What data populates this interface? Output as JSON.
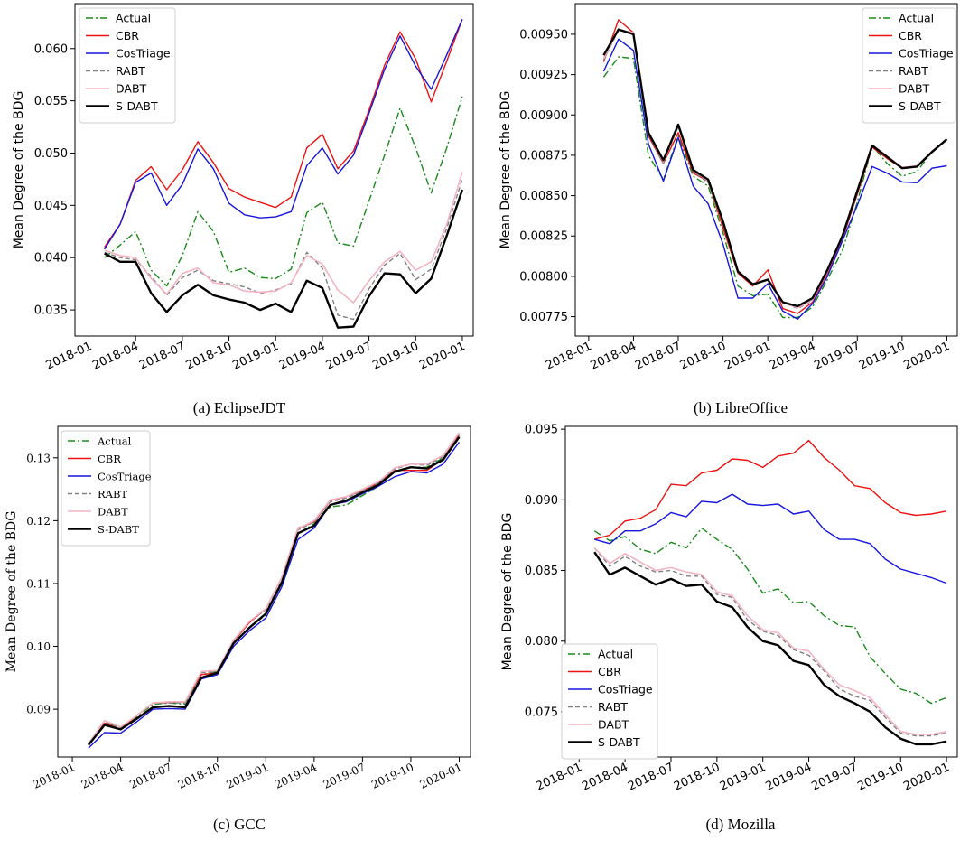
{
  "series_styles": {
    "Actual": {
      "color": "#1a8a1a",
      "dash": "8,3,2,3",
      "width": 1.4
    },
    "CBR": {
      "color": "#ee1111",
      "dash": "",
      "width": 1.4
    },
    "CosTriage": {
      "color": "#1515dd",
      "dash": "",
      "width": 1.4
    },
    "RABT": {
      "color": "#808080",
      "dash": "5,3",
      "width": 1.4
    },
    "DABT": {
      "color": "#f4b3c2",
      "dash": "",
      "width": 1.6
    },
    "S-DABT": {
      "color": "#000000",
      "dash": "",
      "width": 2.4
    }
  },
  "x_months": [
    "2018-02",
    "2018-03",
    "2018-04",
    "2018-05",
    "2018-06",
    "2018-07",
    "2018-08",
    "2018-09",
    "2018-10",
    "2018-11",
    "2018-12",
    "2019-01",
    "2019-02",
    "2019-03",
    "2019-04",
    "2019-05",
    "2019-06",
    "2019-07",
    "2019-08",
    "2019-09",
    "2019-10",
    "2019-11",
    "2019-12",
    "2020-01"
  ],
  "chart_data": [
    {
      "type": "line",
      "caption": "(a) EclipseJDT",
      "ylabel": "Mean Degree of the BDG",
      "ylim": [
        0.0325,
        0.0643
      ],
      "yticks": [
        "0.035",
        "0.040",
        "0.045",
        "0.050",
        "0.055",
        "0.060"
      ],
      "ytick_values": [
        0.035,
        0.04,
        0.045,
        0.05,
        0.055,
        0.06
      ],
      "xticks": [
        "2018-01",
        "2018-04",
        "2018-07",
        "2018-10",
        "2019-01",
        "2019-04",
        "2019-07",
        "2019-10",
        "2020-01"
      ],
      "legend": "top-left",
      "series": [
        {
          "name": "Actual",
          "values": [
            0.04,
            0.0412,
            0.0425,
            0.0388,
            0.0373,
            0.0402,
            0.0444,
            0.0425,
            0.0386,
            0.039,
            0.0381,
            0.038,
            0.0389,
            0.0443,
            0.0453,
            0.0414,
            0.0411,
            0.0454,
            0.0498,
            0.0543,
            0.0505,
            0.0462,
            0.0505,
            0.0554
          ]
        },
        {
          "name": "CBR",
          "values": [
            0.041,
            0.0432,
            0.0474,
            0.0487,
            0.0465,
            0.0484,
            0.0511,
            0.0491,
            0.0466,
            0.0458,
            0.0453,
            0.0448,
            0.0458,
            0.0505,
            0.0518,
            0.0485,
            0.0502,
            0.0541,
            0.0584,
            0.0616,
            0.059,
            0.0549,
            0.0588,
            0.0628
          ]
        },
        {
          "name": "CosTriage",
          "values": [
            0.0408,
            0.0432,
            0.0472,
            0.0481,
            0.045,
            0.047,
            0.0504,
            0.0485,
            0.0452,
            0.0441,
            0.0438,
            0.0439,
            0.0444,
            0.0488,
            0.0505,
            0.048,
            0.0498,
            0.0538,
            0.058,
            0.0612,
            0.0583,
            0.0561,
            0.0594,
            0.0628
          ]
        },
        {
          "name": "RABT",
          "values": [
            0.0405,
            0.04,
            0.0398,
            0.0382,
            0.0364,
            0.0381,
            0.0388,
            0.0378,
            0.0375,
            0.0372,
            0.0366,
            0.0369,
            0.0375,
            0.0405,
            0.039,
            0.0345,
            0.0341,
            0.037,
            0.0393,
            0.0404,
            0.0379,
            0.0389,
            0.0428,
            0.0475
          ]
        },
        {
          "name": "DABT",
          "values": [
            0.0407,
            0.0402,
            0.04,
            0.038,
            0.0365,
            0.0385,
            0.039,
            0.0376,
            0.0374,
            0.0368,
            0.0367,
            0.0368,
            0.0376,
            0.0402,
            0.0394,
            0.0369,
            0.0357,
            0.0378,
            0.0396,
            0.0406,
            0.0388,
            0.0396,
            0.0432,
            0.0482
          ]
        },
        {
          "name": "S-DABT",
          "values": [
            0.0404,
            0.0396,
            0.0396,
            0.0366,
            0.0348,
            0.0364,
            0.0374,
            0.0364,
            0.036,
            0.0357,
            0.035,
            0.0356,
            0.0348,
            0.0378,
            0.0371,
            0.0333,
            0.0334,
            0.0363,
            0.0385,
            0.0384,
            0.0366,
            0.038,
            0.0421,
            0.0465
          ]
        }
      ]
    },
    {
      "type": "line",
      "caption": "(b) LibreOffice",
      "ylabel": "Mean Degree of the BDG",
      "ylim": [
        0.00763,
        0.00969
      ],
      "yticks": [
        "0.00775",
        "0.00800",
        "0.00825",
        "0.00850",
        "0.00875",
        "0.00900",
        "0.00925",
        "0.00950"
      ],
      "ytick_values": [
        0.00775,
        0.008,
        0.00825,
        0.0085,
        0.00875,
        0.009,
        0.00925,
        0.0095
      ],
      "xticks": [
        "2018-01",
        "2018-04",
        "2018-07",
        "2018-10",
        "2019-01",
        "2019-04",
        "2019-07",
        "2019-10",
        "2020-01"
      ],
      "legend": "top-right",
      "series": [
        {
          "name": "Actual",
          "values": [
            0.009235,
            0.00936,
            0.00935,
            0.00875,
            0.0086,
            0.00887,
            0.00862,
            0.00856,
            0.00827,
            0.00794,
            0.00788,
            0.00789,
            0.007745,
            0.007745,
            0.00781,
            0.00798,
            0.00816,
            0.00846,
            0.00881,
            0.0087,
            0.00862,
            0.00865,
            0.00877,
            0.008845
          ]
        },
        {
          "name": "CBR",
          "values": [
            0.00933,
            0.00959,
            0.00951,
            0.00887,
            0.0087,
            0.00889,
            0.00864,
            0.00859,
            0.0083,
            0.00802,
            0.00794,
            0.00804,
            0.0078,
            0.00777,
            0.00784,
            0.00802,
            0.00823,
            0.00851,
            0.0088,
            0.00873,
            0.00867,
            0.00868,
            0.00877,
            0.00885
          ]
        },
        {
          "name": "CosTriage",
          "values": [
            0.00927,
            0.00947,
            0.0094,
            0.00882,
            0.00859,
            0.00886,
            0.00856,
            0.00845,
            0.0082,
            0.007865,
            0.007865,
            0.007955,
            0.007785,
            0.007735,
            0.00783,
            0.008,
            0.00822,
            0.00844,
            0.00868,
            0.00864,
            0.008585,
            0.00858,
            0.00867,
            0.008685
          ]
        },
        {
          "name": "RABT",
          "values": [
            0.00934,
            0.009525,
            0.009505,
            0.00888,
            0.0087,
            0.00893,
            0.00865,
            0.00858,
            0.00833,
            0.00803,
            0.007955,
            0.007975,
            0.00784,
            0.0078,
            0.00785,
            0.00803,
            0.00824,
            0.00852,
            0.00881,
            0.00874,
            0.00867,
            0.00868,
            0.00877,
            0.00885
          ]
        },
        {
          "name": "DABT",
          "values": [
            0.00935,
            0.00953,
            0.00951,
            0.00889,
            0.00871,
            0.008935,
            0.00866,
            0.00859,
            0.00833,
            0.008035,
            0.007955,
            0.00798,
            0.00784,
            0.007805,
            0.007855,
            0.00803,
            0.008245,
            0.008525,
            0.008815,
            0.008745,
            0.008675,
            0.008685,
            0.008775,
            0.00885
          ]
        },
        {
          "name": "S-DABT",
          "values": [
            0.00937,
            0.00953,
            0.0095,
            0.00889,
            0.00872,
            0.00894,
            0.00866,
            0.0086,
            0.00834,
            0.00803,
            0.00795,
            0.00798,
            0.00784,
            0.007815,
            0.007865,
            0.00804,
            0.00825,
            0.00853,
            0.00881,
            0.00874,
            0.00867,
            0.00868,
            0.00877,
            0.00885
          ]
        }
      ]
    },
    {
      "type": "line",
      "caption": "(c) GCC",
      "ylabel": "Mean Degree of the BDG",
      "ylim": [
        0.0824,
        0.135
      ],
      "yticks": [
        "0.09",
        "0.10",
        "0.11",
        "0.12",
        "0.13"
      ],
      "ytick_values": [
        0.09,
        0.1,
        0.11,
        0.12,
        0.13
      ],
      "xticks": [
        "2018-01",
        "2018-04",
        "2018-07",
        "2018-10",
        "2019-01",
        "2019-04",
        "2019-07",
        "2019-10",
        "2020-01"
      ],
      "legend": "top-left",
      "serif": true,
      "series": [
        {
          "name": "Actual",
          "values": [
            0.0845,
            0.088,
            0.087,
            0.0888,
            0.0908,
            0.091,
            0.0908,
            0.0955,
            0.096,
            0.1005,
            0.103,
            0.105,
            0.11,
            0.118,
            0.1195,
            0.1222,
            0.1225,
            0.124,
            0.1255,
            0.1278,
            0.1285,
            0.1285,
            0.13,
            0.1335
          ]
        },
        {
          "name": "CBR",
          "values": [
            0.0845,
            0.0878,
            0.0868,
            0.089,
            0.091,
            0.0911,
            0.0912,
            0.0955,
            0.0958,
            0.1008,
            0.1038,
            0.106,
            0.111,
            0.1188,
            0.1198,
            0.1232,
            0.1238,
            0.1248,
            0.126,
            0.128,
            0.128,
            0.128,
            0.1298,
            0.1338
          ]
        },
        {
          "name": "CosTriage",
          "values": [
            0.0838,
            0.0863,
            0.0862,
            0.088,
            0.09,
            0.0901,
            0.09,
            0.0948,
            0.0955,
            0.1,
            0.1025,
            0.1045,
            0.1095,
            0.117,
            0.1188,
            0.1225,
            0.123,
            0.1243,
            0.1255,
            0.127,
            0.1278,
            0.1276,
            0.129,
            0.1325
          ]
        },
        {
          "name": "RABT",
          "values": [
            0.0845,
            0.088,
            0.087,
            0.089,
            0.091,
            0.091,
            0.091,
            0.0958,
            0.096,
            0.1008,
            0.104,
            0.1058,
            0.1108,
            0.1185,
            0.1198,
            0.123,
            0.1236,
            0.1248,
            0.126,
            0.1282,
            0.129,
            0.1288,
            0.1302,
            0.1338
          ]
        },
        {
          "name": "DABT",
          "values": [
            0.0845,
            0.0882,
            0.0872,
            0.089,
            0.091,
            0.0912,
            0.0912,
            0.096,
            0.0962,
            0.101,
            0.104,
            0.106,
            0.111,
            0.1187,
            0.12,
            0.1233,
            0.1238,
            0.125,
            0.1262,
            0.1284,
            0.129,
            0.129,
            0.1304,
            0.134
          ]
        },
        {
          "name": "S-DABT",
          "values": [
            0.0843,
            0.0875,
            0.0868,
            0.0885,
            0.0903,
            0.0905,
            0.0903,
            0.095,
            0.0958,
            0.1005,
            0.103,
            0.1052,
            0.1102,
            0.118,
            0.1192,
            0.1225,
            0.1232,
            0.1245,
            0.1257,
            0.1278,
            0.1285,
            0.1283,
            0.1297,
            0.1333
          ]
        }
      ]
    },
    {
      "type": "line",
      "caption": "(d) Mozilla",
      "ylabel": "Mean Degree of the BDG",
      "ylim": [
        0.0718,
        0.0952
      ],
      "yticks": [
        "0.075",
        "0.080",
        "0.085",
        "0.090",
        "0.095"
      ],
      "ytick_values": [
        0.075,
        0.08,
        0.085,
        0.09,
        0.095
      ],
      "xticks": [
        "2018-01",
        "2018-04",
        "2018-07",
        "2018-10",
        "2019-01",
        "2019-04",
        "2019-07",
        "2019-10",
        "2020-01"
      ],
      "legend": "bottom-left",
      "series": [
        {
          "name": "Actual",
          "values": [
            0.0878,
            0.0871,
            0.0874,
            0.0865,
            0.0862,
            0.087,
            0.0866,
            0.088,
            0.0872,
            0.0865,
            0.0851,
            0.0834,
            0.0837,
            0.0827,
            0.0828,
            0.0818,
            0.0811,
            0.081,
            0.0789,
            0.0777,
            0.0766,
            0.0763,
            0.0756,
            0.076
          ]
        },
        {
          "name": "CBR",
          "values": [
            0.0872,
            0.0875,
            0.0885,
            0.0887,
            0.0893,
            0.0911,
            0.091,
            0.0919,
            0.0921,
            0.0929,
            0.0928,
            0.0923,
            0.0931,
            0.0933,
            0.0942,
            0.093,
            0.0921,
            0.091,
            0.0908,
            0.0898,
            0.0891,
            0.0889,
            0.089,
            0.0892
          ]
        },
        {
          "name": "CosTriage",
          "values": [
            0.0872,
            0.0869,
            0.0878,
            0.0878,
            0.0883,
            0.0891,
            0.0888,
            0.0899,
            0.0898,
            0.0904,
            0.0897,
            0.0896,
            0.0897,
            0.089,
            0.0892,
            0.0879,
            0.0872,
            0.0872,
            0.0869,
            0.0858,
            0.0851,
            0.0848,
            0.0845,
            0.0841
          ]
        },
        {
          "name": "RABT",
          "values": [
            0.0866,
            0.0853,
            0.086,
            0.0853,
            0.0849,
            0.085,
            0.0846,
            0.0846,
            0.0833,
            0.0831,
            0.0815,
            0.0807,
            0.0804,
            0.0794,
            0.079,
            0.0779,
            0.0766,
            0.0761,
            0.0758,
            0.0746,
            0.0735,
            0.0733,
            0.0733,
            0.0735
          ]
        },
        {
          "name": "DABT",
          "values": [
            0.0866,
            0.0855,
            0.0862,
            0.0856,
            0.085,
            0.0852,
            0.0849,
            0.0847,
            0.0835,
            0.0832,
            0.0818,
            0.0808,
            0.0806,
            0.0795,
            0.0793,
            0.078,
            0.0769,
            0.0765,
            0.076,
            0.0748,
            0.0736,
            0.0734,
            0.0734,
            0.0736
          ]
        },
        {
          "name": "S-DABT",
          "values": [
            0.0863,
            0.0847,
            0.0852,
            0.0846,
            0.084,
            0.0844,
            0.0839,
            0.084,
            0.0828,
            0.0824,
            0.081,
            0.08,
            0.0797,
            0.0786,
            0.0783,
            0.0769,
            0.0761,
            0.0756,
            0.075,
            0.0739,
            0.0731,
            0.0727,
            0.0727,
            0.0729
          ]
        }
      ]
    }
  ]
}
